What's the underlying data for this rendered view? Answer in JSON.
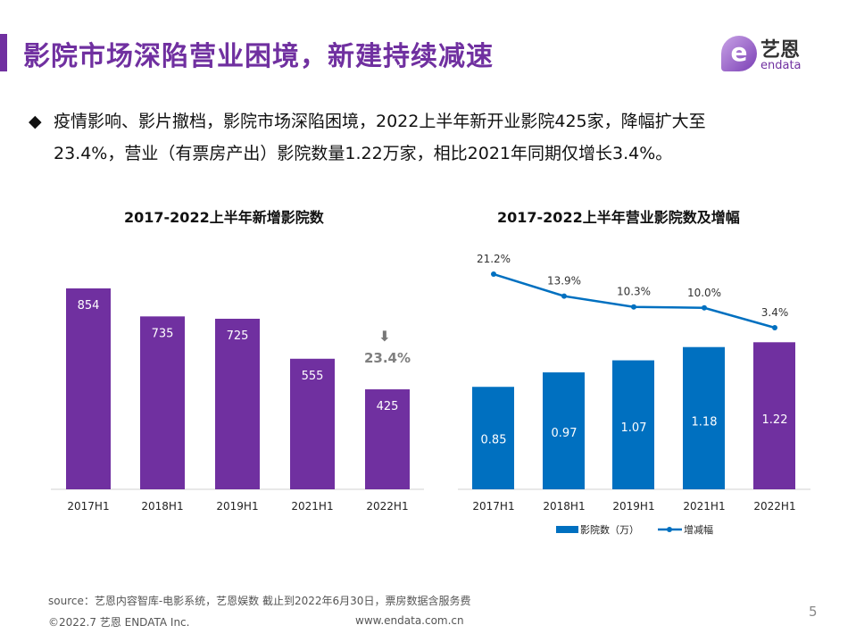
{
  "header": {
    "title": "影院市场深陷营业困境，新建持续减速",
    "logo_cn": "艺恩",
    "logo_en": "endata",
    "logo_mark": "e"
  },
  "bullet": {
    "icon": "◆",
    "line1": "疫情影响、影片撤档，影院市场深陷困境，2022上半年新开业影院425家，降幅扩大至",
    "line2": "23.4%，营业（有票房产出）影院数量1.22万家，相比2021年同期仅增长3.4%。"
  },
  "colors": {
    "purple": "#7030a0",
    "blue": "#0070c0"
  },
  "chart_data": [
    {
      "type": "bar",
      "title": "2017-2022上半年新增影院数",
      "categories": [
        "2017H1",
        "2018H1",
        "2019H1",
        "2021H1",
        "2022H1"
      ],
      "values": [
        854,
        735,
        725,
        555,
        425
      ],
      "annotation": {
        "icon": "arrow-down",
        "text": "23.4%"
      }
    },
    {
      "type": "bar+line",
      "title": "2017-2022上半年营业影院数及增幅",
      "categories": [
        "2017H1",
        "2018H1",
        "2019H1",
        "2021H1",
        "2022H1"
      ],
      "series": [
        {
          "name": "影院数（万）",
          "type": "bar",
          "values": [
            0.85,
            0.97,
            1.07,
            1.18,
            1.22
          ],
          "labels": [
            "0.85",
            "0.97",
            "1.07",
            "1.18",
            "1.22"
          ]
        },
        {
          "name": "增减幅",
          "type": "line",
          "values": [
            21.2,
            13.9,
            10.3,
            10.0,
            3.4
          ],
          "labels": [
            "21.2%",
            "13.9%",
            "10.3%",
            "10.0%",
            "3.4%"
          ]
        }
      ]
    }
  ],
  "footer": {
    "source": "source：艺恩内容智库-电影系统，艺恩娱数    截止到2022年6月30日，票房数据含服务费",
    "copyright": "©2022.7 艺恩 ENDATA Inc.",
    "url": "www.endata.com.cn",
    "page": "5"
  }
}
